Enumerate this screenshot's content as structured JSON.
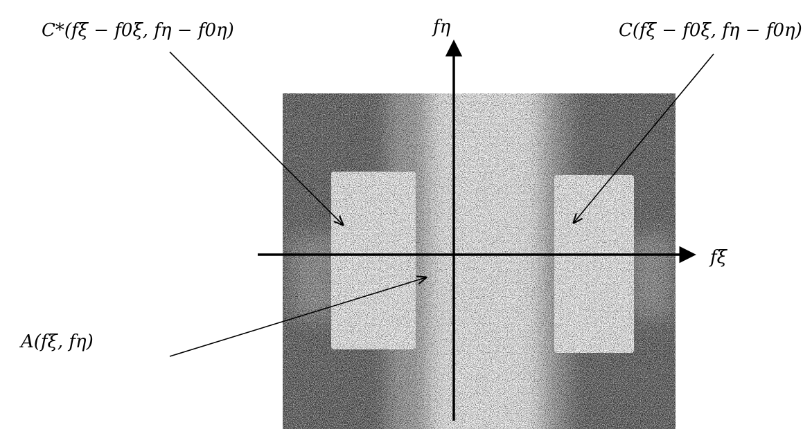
{
  "axes": {
    "vertical": "fη",
    "horizontal": "fξ"
  },
  "annotations": [
    {
      "label": "C*(fξ − f0ξ, fη − f0η)"
    },
    {
      "label": "C(fξ − f0ξ, fη − f0η)"
    },
    {
      "label": "A(fξ, fη)"
    }
  ]
}
